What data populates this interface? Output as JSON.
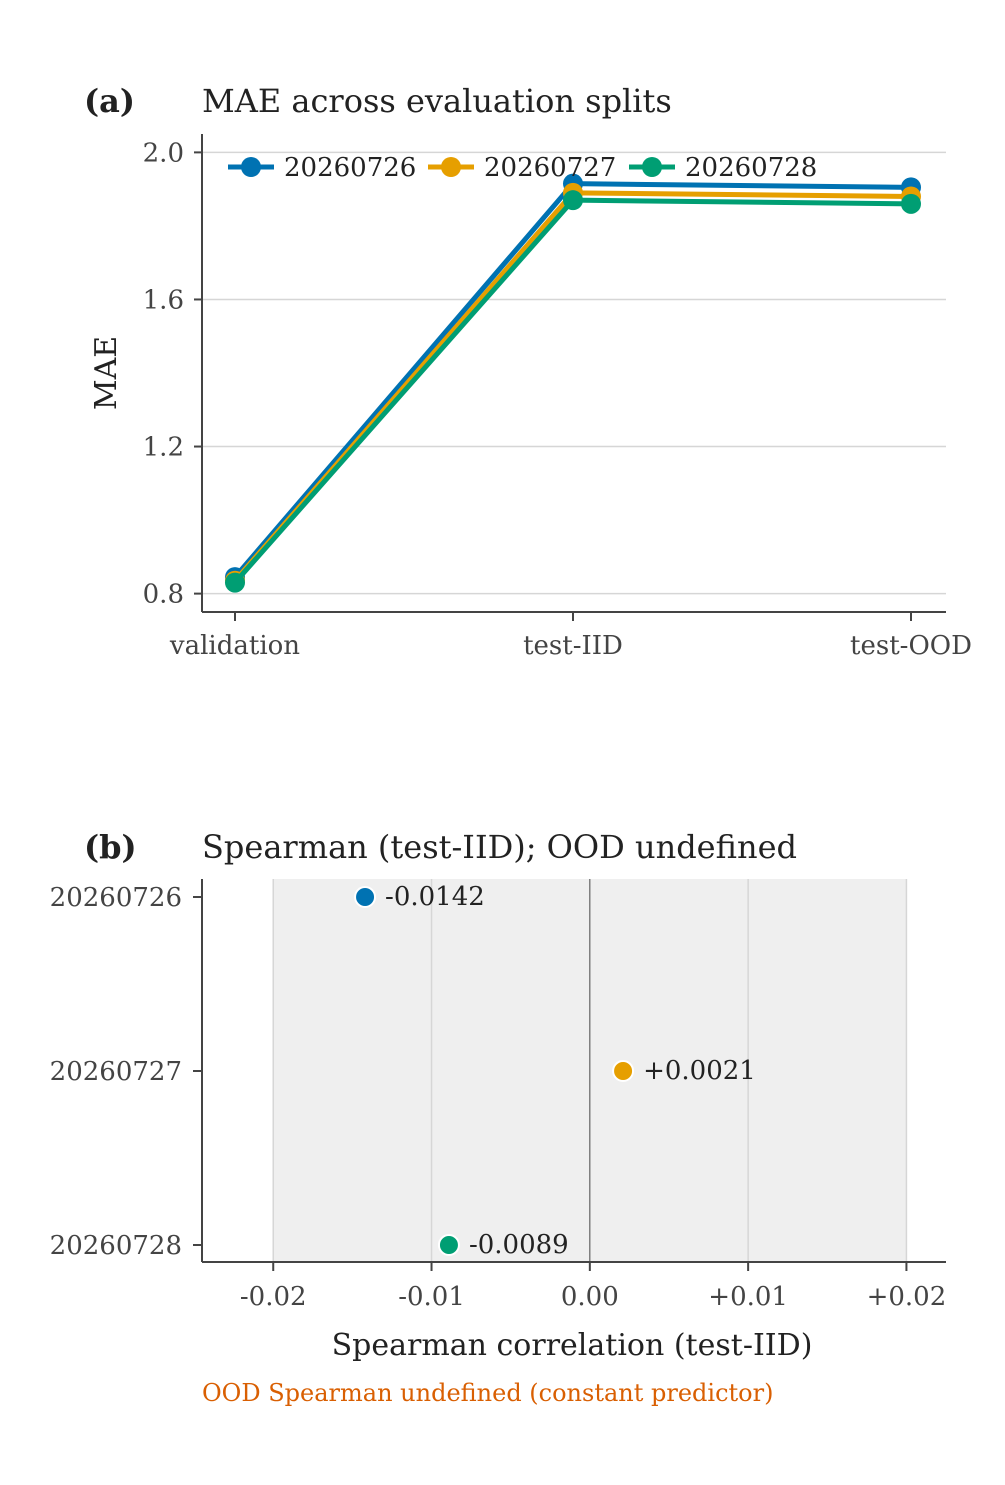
{
  "chart_data": [
    {
      "panel": "(a)",
      "type": "line",
      "title": "MAE across evaluation splits",
      "xlabel": "",
      "ylabel": "MAE",
      "categories": [
        "validation",
        "test-IID",
        "test-OOD"
      ],
      "ylim": [
        0.75,
        2.05
      ],
      "yticks": [
        0.8,
        1.2,
        1.6,
        2.0
      ],
      "ytick_labels": [
        "0.8",
        "1.2",
        "1.6",
        "2.0"
      ],
      "grid": "horizontal",
      "legend_position": "top",
      "series": [
        {
          "name": "20260726",
          "color": "#0072b2",
          "values": [
            0.845,
            1.915,
            1.905
          ]
        },
        {
          "name": "20260727",
          "color": "#e69f00",
          "values": [
            0.835,
            1.89,
            1.88
          ]
        },
        {
          "name": "20260728",
          "color": "#009e73",
          "values": [
            0.83,
            1.87,
            1.86
          ]
        }
      ]
    },
    {
      "panel": "(b)",
      "type": "scatter",
      "title": "Spearman (test-IID); OOD undefined",
      "xlabel": "Spearman correlation (test-IID)",
      "ylabel": "",
      "xlim": [
        -0.0245,
        0.0225
      ],
      "xticks": [
        -0.02,
        -0.01,
        0.0,
        0.01,
        0.02
      ],
      "xtick_labels": [
        "-0.02",
        "-0.01",
        "0.00",
        "+0.01",
        "+0.02"
      ],
      "grid": "vertical",
      "shaded_range": [
        -0.02,
        0.02
      ],
      "zero_line": true,
      "categories": [
        "20260726",
        "20260727",
        "20260728"
      ],
      "points": [
        {
          "name": "20260726",
          "value": -0.0142,
          "label": "-0.0142",
          "color": "#0072b2"
        },
        {
          "name": "20260727",
          "value": 0.0021,
          "label": "+0.0021",
          "color": "#e69f00"
        },
        {
          "name": "20260728",
          "value": -0.0089,
          "label": "-0.0089",
          "color": "#009e73"
        }
      ],
      "note": "OOD Spearman undefined (constant predictor)",
      "note_color": "#d95f02"
    }
  ]
}
